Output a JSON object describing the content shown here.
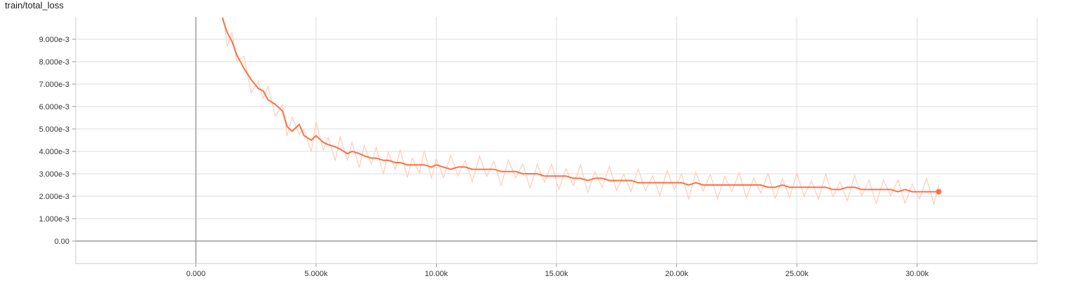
{
  "chart_data": {
    "type": "line",
    "title": "train/total_loss",
    "xlabel": "",
    "ylabel": "",
    "xlim": [
      -5000,
      35000
    ],
    "ylim": [
      -0.001,
      0.01
    ],
    "x_ticks": [
      0,
      5000,
      10000,
      15000,
      20000,
      25000,
      30000
    ],
    "x_tick_labels": [
      "0.000",
      "5.000k",
      "10.00k",
      "15.00k",
      "20.00k",
      "25.00k",
      "30.00k"
    ],
    "y_ticks": [
      0,
      0.001,
      0.002,
      0.003,
      0.004,
      0.005,
      0.006,
      0.007,
      0.008,
      0.009
    ],
    "y_tick_labels": [
      "0.00",
      "1.000e-3",
      "2.000e-3",
      "3.000e-3",
      "4.000e-3",
      "5.000e-3",
      "6.000e-3",
      "7.000e-3",
      "8.000e-3",
      "9.000e-3"
    ],
    "grid": true,
    "colors": {
      "smoothed": "#ff7043",
      "raw": "#ffccbc"
    },
    "series": [
      {
        "role": "smoothed",
        "x": [
          1100,
          1300,
          1500,
          1700,
          2000,
          2300,
          2600,
          2800,
          3000,
          3300,
          3600,
          3800,
          4000,
          4300,
          4500,
          4800,
          5000,
          5300,
          5500,
          5800,
          6000,
          6300,
          6500,
          6800,
          7000,
          7300,
          7500,
          7800,
          8000,
          8300,
          8500,
          8800,
          9000,
          9300,
          9500,
          9800,
          10000,
          10300,
          10600,
          10900,
          11200,
          11500,
          11800,
          12100,
          12400,
          12700,
          13000,
          13300,
          13600,
          13900,
          14200,
          14500,
          14800,
          15100,
          15400,
          15700,
          16000,
          16300,
          16600,
          16900,
          17200,
          17500,
          17800,
          18100,
          18400,
          18700,
          19000,
          19300,
          19600,
          19900,
          20200,
          20500,
          20800,
          21100,
          21400,
          21700,
          22000,
          22300,
          22600,
          22900,
          23200,
          23500,
          23800,
          24100,
          24400,
          24700,
          25000,
          25300,
          25600,
          25900,
          26200,
          26500,
          26800,
          27100,
          27400,
          27700,
          28000,
          28300,
          28600,
          28900,
          29200,
          29500,
          29800,
          30100,
          30400,
          30700,
          30900
        ],
        "y": [
          0.00995,
          0.0093,
          0.0089,
          0.0083,
          0.0077,
          0.0072,
          0.0068,
          0.0067,
          0.0063,
          0.0061,
          0.0058,
          0.0051,
          0.0049,
          0.0052,
          0.0047,
          0.0045,
          0.0047,
          0.0044,
          0.0043,
          0.0042,
          0.0041,
          0.0039,
          0.004,
          0.0039,
          0.0038,
          0.0037,
          0.0037,
          0.0036,
          0.0036,
          0.0035,
          0.0035,
          0.0034,
          0.0034,
          0.0034,
          0.0034,
          0.0033,
          0.0034,
          0.0033,
          0.0032,
          0.0033,
          0.0033,
          0.0032,
          0.0032,
          0.0032,
          0.0032,
          0.0031,
          0.0031,
          0.0031,
          0.003,
          0.003,
          0.003,
          0.0029,
          0.0029,
          0.0029,
          0.0029,
          0.0028,
          0.0028,
          0.0027,
          0.0028,
          0.0028,
          0.0027,
          0.0027,
          0.0027,
          0.0027,
          0.0026,
          0.0026,
          0.0026,
          0.0026,
          0.0026,
          0.0026,
          0.0026,
          0.0025,
          0.0026,
          0.0025,
          0.0025,
          0.0025,
          0.0025,
          0.0025,
          0.0025,
          0.0025,
          0.0025,
          0.0025,
          0.0024,
          0.0024,
          0.0025,
          0.0024,
          0.0024,
          0.0024,
          0.0024,
          0.0024,
          0.0024,
          0.0023,
          0.0023,
          0.0024,
          0.0024,
          0.0023,
          0.0023,
          0.0023,
          0.0023,
          0.0023,
          0.0022,
          0.0023,
          0.0022,
          0.0022,
          0.0022,
          0.0022,
          0.0022
        ]
      }
    ]
  }
}
